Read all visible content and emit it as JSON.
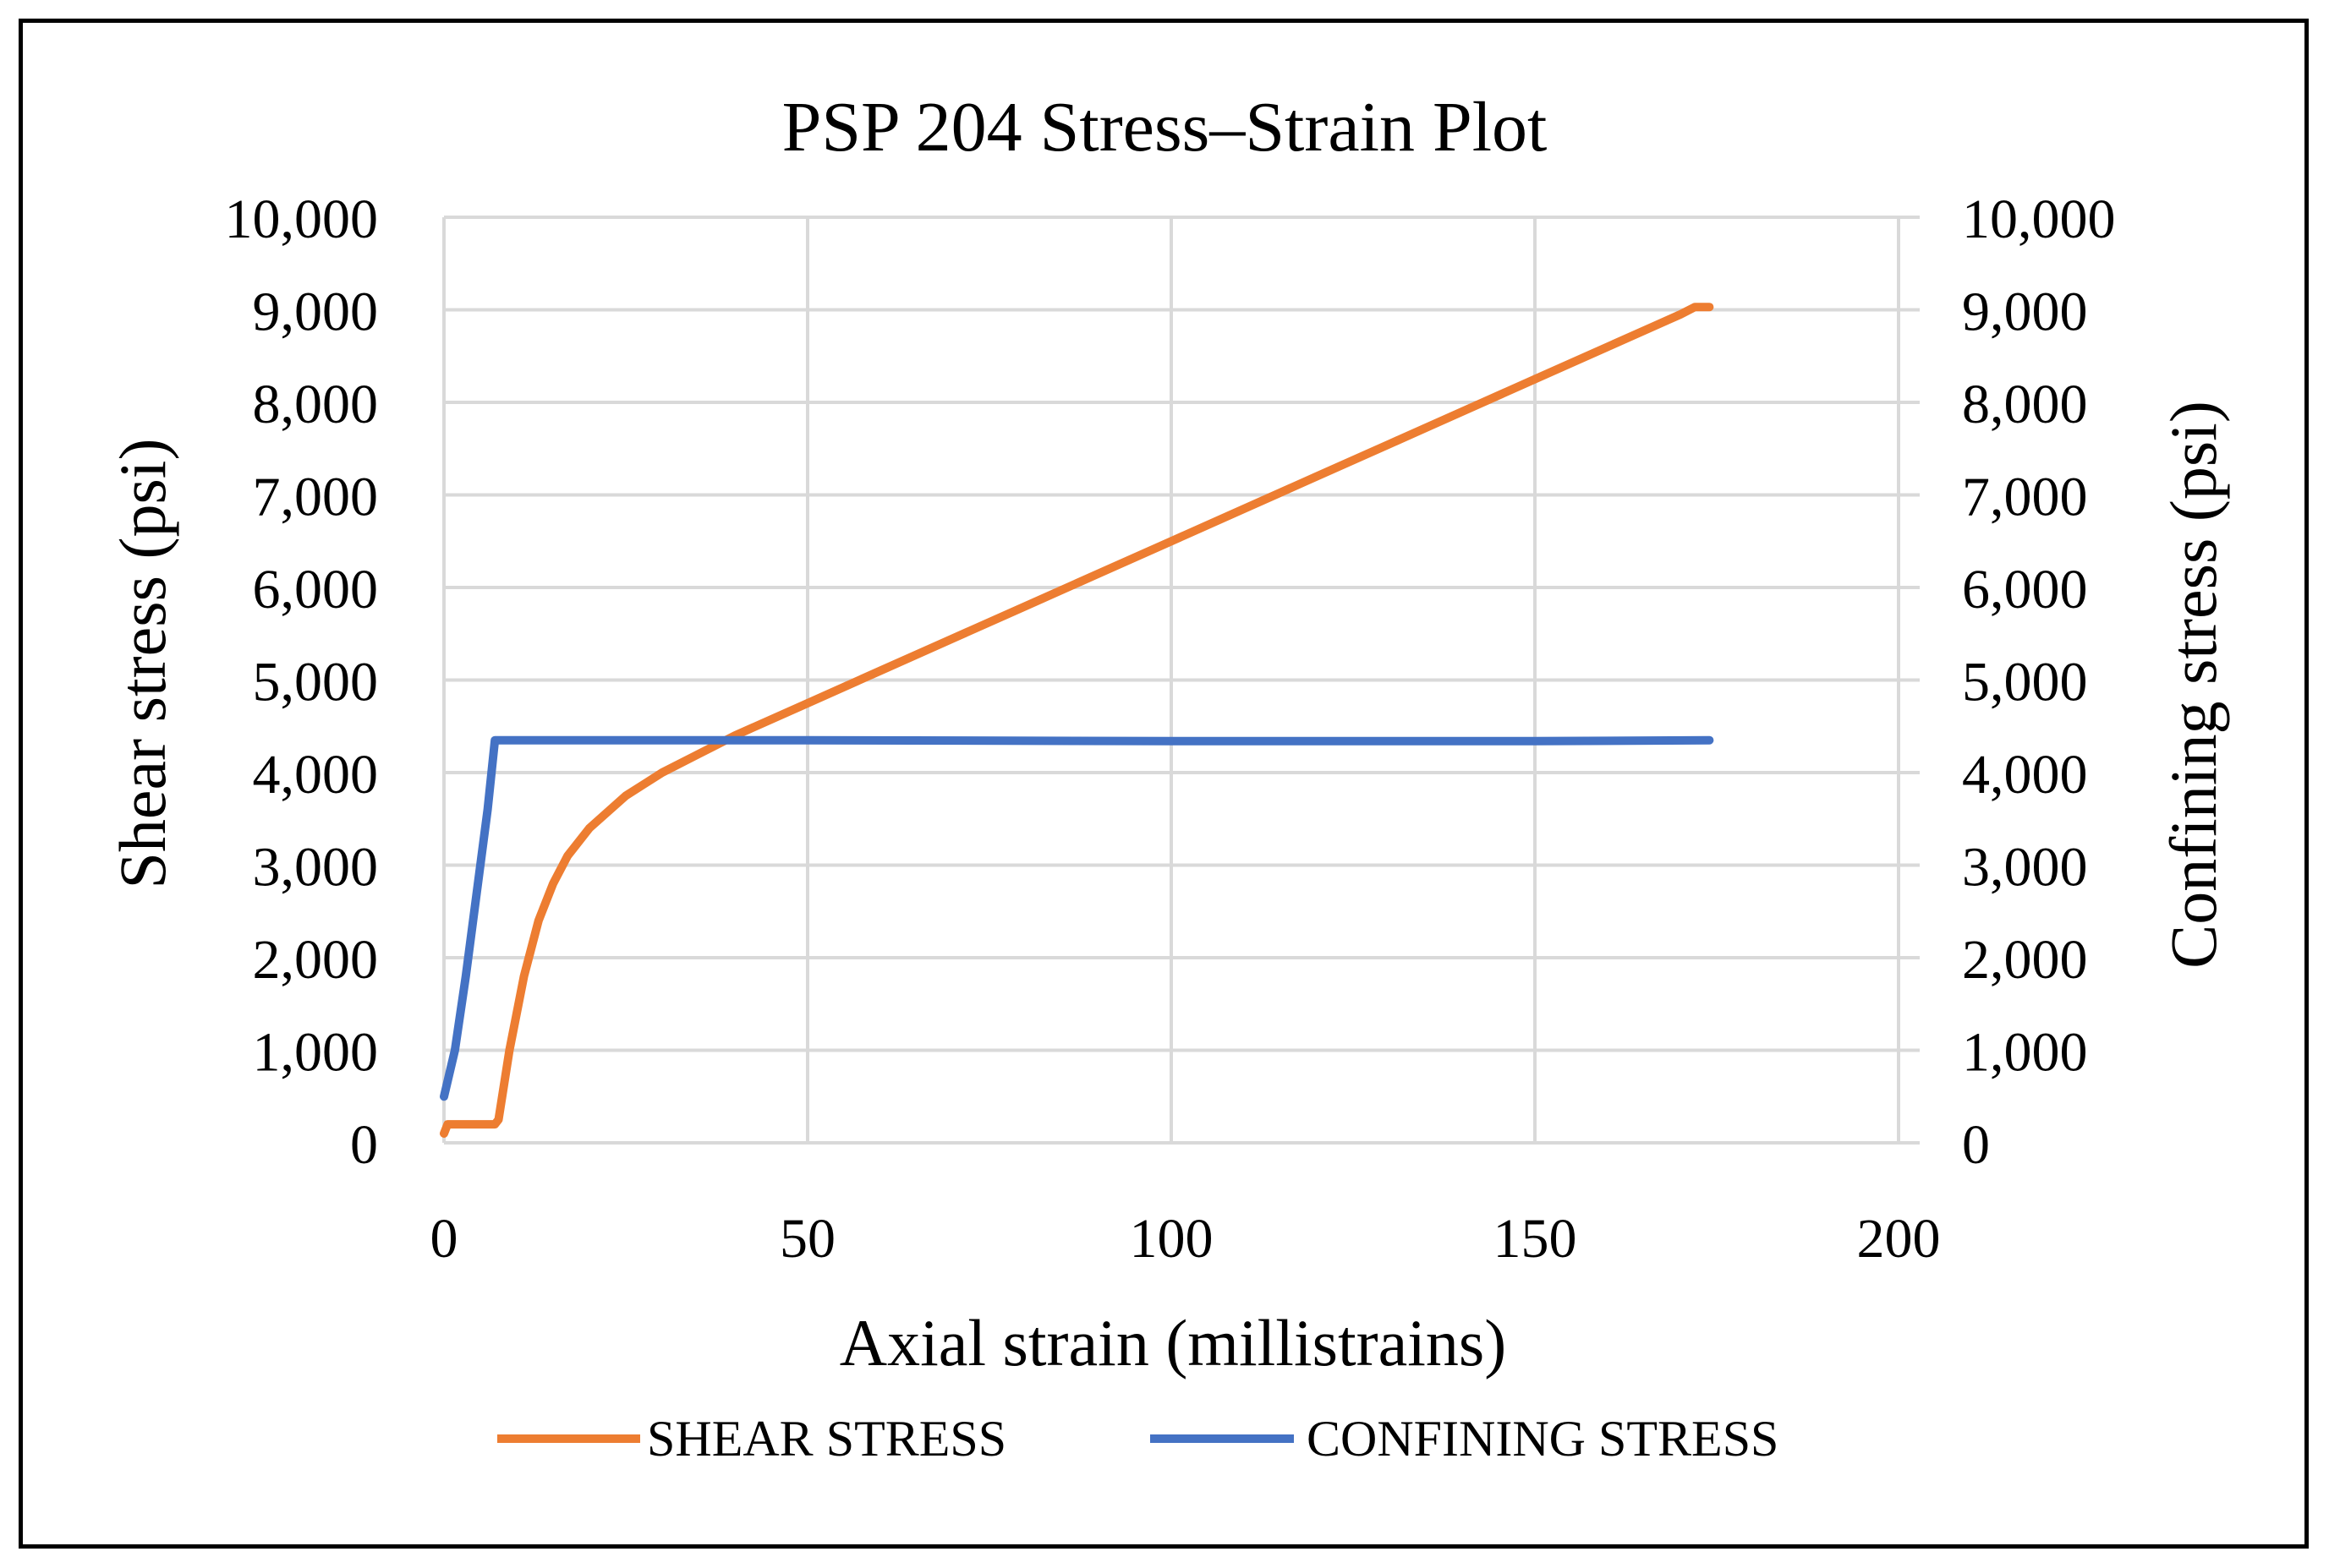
{
  "chart_data": {
    "type": "line",
    "title": "PSP 204  Stress–Strain Plot",
    "xlabel": "Axial strain (millistrains)",
    "ylabel": "Shear stress (psi)",
    "y2label": "Confining stress (psi)",
    "xlim": [
      0,
      200
    ],
    "ylim": [
      0,
      10000
    ],
    "y2lim": [
      0,
      10000
    ],
    "x_ticks": [
      "0",
      "50",
      "100",
      "150",
      "200"
    ],
    "y_ticks": [
      "0",
      "1,000",
      "2,000",
      "3,000",
      "4,000",
      "5,000",
      "6,000",
      "7,000",
      "8,000",
      "9,000",
      "10,000"
    ],
    "y2_ticks": [
      "0",
      "1,000",
      "2,000",
      "3,000",
      "4,000",
      "5,000",
      "6,000",
      "7,000",
      "8,000",
      "9,000",
      "10,000"
    ],
    "grid": true,
    "legend_position": "bottom",
    "series": [
      {
        "name": "SHEAR STRESS",
        "axis": "left",
        "color": "#ED7D31",
        "points": [
          [
            0,
            100
          ],
          [
            0.5,
            200
          ],
          [
            7,
            200
          ],
          [
            7.5,
            250
          ],
          [
            9,
            1000
          ],
          [
            11,
            1800
          ],
          [
            13,
            2400
          ],
          [
            15,
            2800
          ],
          [
            17,
            3100
          ],
          [
            20,
            3400
          ],
          [
            25,
            3750
          ],
          [
            30,
            4000
          ],
          [
            35,
            4200
          ],
          [
            40,
            4400
          ],
          [
            50,
            4750
          ],
          [
            60,
            5100
          ],
          [
            70,
            5450
          ],
          [
            80,
            5800
          ],
          [
            90,
            6150
          ],
          [
            100,
            6500
          ],
          [
            110,
            6850
          ],
          [
            120,
            7200
          ],
          [
            130,
            7550
          ],
          [
            140,
            7900
          ],
          [
            150,
            8250
          ],
          [
            160,
            8600
          ],
          [
            170,
            8950
          ],
          [
            172,
            9030
          ],
          [
            174,
            9030
          ]
        ]
      },
      {
        "name": "CONFINING STRESS",
        "axis": "right",
        "color": "#4472C4",
        "points": [
          [
            0,
            500
          ],
          [
            1.5,
            1000
          ],
          [
            3,
            1800
          ],
          [
            4.5,
            2700
          ],
          [
            6,
            3600
          ],
          [
            7,
            4350
          ],
          [
            50,
            4350
          ],
          [
            100,
            4340
          ],
          [
            150,
            4340
          ],
          [
            174,
            4350
          ]
        ]
      }
    ]
  }
}
